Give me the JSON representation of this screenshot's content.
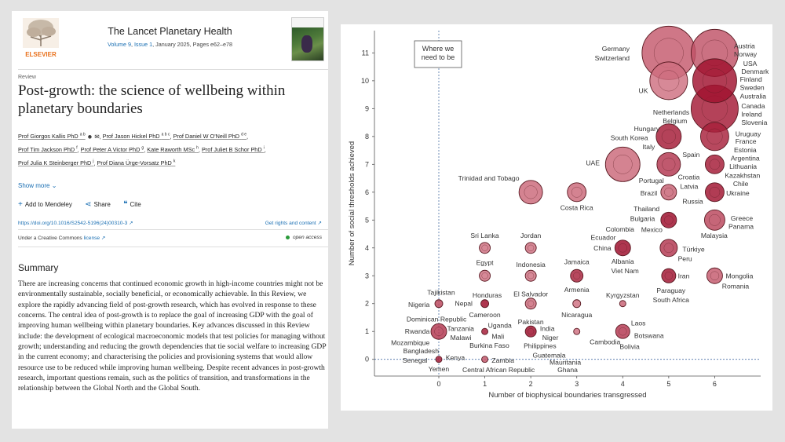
{
  "journal": {
    "publisher_logo_text": "ELSEVIER",
    "title": "The Lancet Planetary Health",
    "volume_label": "Volume 9",
    "issue_label": "Issue 1",
    "meta_rest": ", January 2025, Pages e62–e78"
  },
  "article": {
    "type": "Review",
    "title": "Post-growth: the science of wellbeing within planetary boundaries",
    "authors": [
      {
        "name": "Prof Giorgos Kallis PhD",
        "sup": "a b"
      },
      {
        "name": "Prof Jason Hickel PhD",
        "sup": "a b c"
      },
      {
        "name": "Prof Daniel W O'Neill PhD",
        "sup": "d e"
      },
      {
        "name": "Prof Tim Jackson PhD",
        "sup": "f"
      },
      {
        "name": "Prof Peter A Victor PhD",
        "sup": "g"
      },
      {
        "name": "Kate Raworth MSc",
        "sup": "h"
      },
      {
        "name": "Prof Juliet B Schor PhD",
        "sup": "i"
      },
      {
        "name": "Prof Julia K Steinberger PhD",
        "sup": "j"
      },
      {
        "name": "Prof Diana Ürge-Vorsatz PhD",
        "sup": "k"
      }
    ],
    "show_more": "Show more",
    "actions": {
      "mendeley": "Add to Mendeley",
      "share": "Share",
      "cite": "Cite"
    },
    "doi": "https://doi.org/10.1016/S2542-5196(24)00310-3 ↗",
    "rights": "Get rights and content ↗",
    "license_prefix": "Under a Creative Commons ",
    "license_link": "license ↗",
    "open_access": "open access",
    "summary_heading": "Summary",
    "summary": "There are increasing concerns that continued economic growth in high-income countries might not be environmentally sustainable, socially beneficial, or economically achievable. In this Review, we explore the rapidly advancing field of post-growth research, which has evolved in response to these concerns. The central idea of post-growth is to replace the goal of increasing GDP with the goal of improving human wellbeing within planetary boundaries. Key advances discussed in this Review include: the development of ecological macroeconomic models that test policies for managing without growth; understanding and reducing the growth dependencies that tie social welfare to increasing GDP in the current economy; and characterising the policies and provisioning systems that would allow resource use to be reduced while improving human wellbeing. Despite recent advances in post-growth research, important questions remain, such as the politics of transition, and transformations in the relationship between the Global North and the Global South."
  },
  "chart_data": {
    "type": "scatter",
    "xlabel": "Number of biophysical boundaries transgressed",
    "ylabel": "Number of social thresholds achieved",
    "xlim": [
      -1.4,
      7.0
    ],
    "ylim": [
      -0.6,
      11.8
    ],
    "xticks": [
      "0",
      "1",
      "2",
      "3",
      "4",
      "5",
      "6"
    ],
    "yticks": [
      "0",
      "1",
      "2",
      "3",
      "4",
      "5",
      "6",
      "7",
      "8",
      "9",
      "10",
      "11"
    ],
    "annotation": "Where we need to be",
    "colors": {
      "dark": "#9c0a28",
      "mid": "#c43450",
      "light": "#e49aa5",
      "edge": "#5a1a22"
    },
    "bubbles": [
      {
        "x": 5,
        "y": 11,
        "r": 34,
        "level": 0.45
      },
      {
        "x": 6,
        "y": 11,
        "r": 30,
        "level": 0.5
      },
      {
        "x": 5,
        "y": 10,
        "r": 24,
        "level": 0.3
      },
      {
        "x": 6,
        "y": 10,
        "r": 28,
        "level": 0.95
      },
      {
        "x": 6,
        "y": 9,
        "r": 30,
        "level": 0.9
      },
      {
        "x": 5,
        "y": 8,
        "r": 16,
        "level": 0.9
      },
      {
        "x": 6,
        "y": 8,
        "r": 18,
        "level": 0.85
      },
      {
        "x": 4,
        "y": 7,
        "r": 22,
        "level": 0.35
      },
      {
        "x": 5,
        "y": 7,
        "r": 15,
        "level": 0.7
      },
      {
        "x": 6,
        "y": 7,
        "r": 12,
        "level": 0.9
      },
      {
        "x": 2,
        "y": 6,
        "r": 15,
        "level": 0.35
      },
      {
        "x": 3,
        "y": 6,
        "r": 12,
        "level": 0.35
      },
      {
        "x": 5,
        "y": 6,
        "r": 10,
        "level": 0.4
      },
      {
        "x": 6,
        "y": 6,
        "r": 12,
        "level": 0.95
      },
      {
        "x": 5,
        "y": 5,
        "r": 10,
        "level": 1.0
      },
      {
        "x": 6,
        "y": 5,
        "r": 13,
        "level": 0.6
      },
      {
        "x": 4,
        "y": 4,
        "r": 10,
        "level": 1.0
      },
      {
        "x": 5,
        "y": 4,
        "r": 11,
        "level": 0.7
      },
      {
        "x": 1,
        "y": 4,
        "r": 7,
        "level": 0.3
      },
      {
        "x": 2,
        "y": 4,
        "r": 7,
        "level": 0.3
      },
      {
        "x": 1,
        "y": 3,
        "r": 7,
        "level": 0.3
      },
      {
        "x": 2,
        "y": 3,
        "r": 7,
        "level": 0.3
      },
      {
        "x": 3,
        "y": 3,
        "r": 8,
        "level": 0.85
      },
      {
        "x": 5,
        "y": 3,
        "r": 9,
        "level": 0.95
      },
      {
        "x": 6,
        "y": 3,
        "r": 10,
        "level": 0.45
      },
      {
        "x": 0,
        "y": 2,
        "r": 5,
        "level": 0.6
      },
      {
        "x": 1,
        "y": 2,
        "r": 5,
        "level": 1.0
      },
      {
        "x": 2,
        "y": 2,
        "r": 7,
        "level": 0.35
      },
      {
        "x": 3,
        "y": 2,
        "r": 5,
        "level": 0.3
      },
      {
        "x": 4,
        "y": 2,
        "r": 4,
        "level": 0.4
      },
      {
        "x": 0,
        "y": 1,
        "r": 10,
        "level": 0.7
      },
      {
        "x": 1,
        "y": 1,
        "r": 4,
        "level": 0.9
      },
      {
        "x": 2,
        "y": 1,
        "r": 7,
        "level": 1.0
      },
      {
        "x": 3,
        "y": 1,
        "r": 4,
        "level": 0.3
      },
      {
        "x": 4,
        "y": 1,
        "r": 9,
        "level": 0.7
      },
      {
        "x": 0,
        "y": 0,
        "r": 4,
        "level": 0.9
      },
      {
        "x": 1,
        "y": 0,
        "r": 4,
        "level": 0.5
      }
    ],
    "labels": [
      {
        "text": "Austria",
        "x": 6.42,
        "y": 11.25,
        "anchor": "start"
      },
      {
        "text": "Norway",
        "x": 6.42,
        "y": 10.95,
        "anchor": "start"
      },
      {
        "text": "USA",
        "x": 6.62,
        "y": 10.62,
        "anchor": "start"
      },
      {
        "text": "Denmark",
        "x": 6.58,
        "y": 10.33,
        "anchor": "start"
      },
      {
        "text": "Finland",
        "x": 6.55,
        "y": 10.05,
        "anchor": "start"
      },
      {
        "text": "Sweden",
        "x": 6.55,
        "y": 9.75,
        "anchor": "start"
      },
      {
        "text": "Australia",
        "x": 6.55,
        "y": 9.45,
        "anchor": "start"
      },
      {
        "text": "Canada",
        "x": 6.58,
        "y": 9.1,
        "anchor": "start"
      },
      {
        "text": "Ireland",
        "x": 6.58,
        "y": 8.8,
        "anchor": "start"
      },
      {
        "text": "Slovenia",
        "x": 6.58,
        "y": 8.5,
        "anchor": "start"
      },
      {
        "text": "Uruguay",
        "x": 6.45,
        "y": 8.1,
        "anchor": "start"
      },
      {
        "text": "France",
        "x": 6.45,
        "y": 7.82,
        "anchor": "start"
      },
      {
        "text": "Estonia",
        "x": 6.42,
        "y": 7.52,
        "anchor": "start"
      },
      {
        "text": "Argentina",
        "x": 6.35,
        "y": 7.22,
        "anchor": "start"
      },
      {
        "text": "Lithuania",
        "x": 6.32,
        "y": 6.92,
        "anchor": "start"
      },
      {
        "text": "Kazakhstan",
        "x": 6.22,
        "y": 6.6,
        "anchor": "start"
      },
      {
        "text": "Chile",
        "x": 6.4,
        "y": 6.3,
        "anchor": "start"
      },
      {
        "text": "Ukraine",
        "x": 6.25,
        "y": 5.97,
        "anchor": "start"
      },
      {
        "text": "Greece",
        "x": 6.35,
        "y": 5.07,
        "anchor": "start"
      },
      {
        "text": "Panama",
        "x": 6.3,
        "y": 4.77,
        "anchor": "start"
      },
      {
        "text": "Malaysia",
        "x": 5.7,
        "y": 4.45,
        "anchor": "start"
      },
      {
        "text": "Mongolia",
        "x": 6.24,
        "y": 3.0,
        "anchor": "start"
      },
      {
        "text": "Romania",
        "x": 6.16,
        "y": 2.62,
        "anchor": "start"
      },
      {
        "text": "Germany",
        "x": 4.15,
        "y": 11.15,
        "anchor": "end"
      },
      {
        "text": "Switzerland",
        "x": 4.15,
        "y": 10.82,
        "anchor": "end"
      },
      {
        "text": "UK",
        "x": 4.55,
        "y": 9.65,
        "anchor": "end"
      },
      {
        "text": "Netherlands",
        "x": 5.45,
        "y": 8.87,
        "anchor": "end"
      },
      {
        "text": "Belgium",
        "x": 5.4,
        "y": 8.56,
        "anchor": "end"
      },
      {
        "text": "Hungary",
        "x": 4.8,
        "y": 8.28,
        "anchor": "end"
      },
      {
        "text": "South Korea",
        "x": 4.55,
        "y": 7.95,
        "anchor": "end"
      },
      {
        "text": "Italy",
        "x": 4.7,
        "y": 7.63,
        "anchor": "end"
      },
      {
        "text": "Spain",
        "x": 5.3,
        "y": 7.35,
        "anchor": "start"
      },
      {
        "text": "UAE",
        "x": 3.5,
        "y": 7.05,
        "anchor": "end"
      },
      {
        "text": "Croatia",
        "x": 5.2,
        "y": 6.55,
        "anchor": "start"
      },
      {
        "text": "Portugal",
        "x": 4.35,
        "y": 6.42,
        "anchor": "start"
      },
      {
        "text": "Latvia",
        "x": 5.25,
        "y": 6.2,
        "anchor": "start"
      },
      {
        "text": "Brazil",
        "x": 4.75,
        "y": 5.97,
        "anchor": "end"
      },
      {
        "text": "Russia",
        "x": 5.3,
        "y": 5.67,
        "anchor": "start"
      },
      {
        "text": "Thailand",
        "x": 4.8,
        "y": 5.4,
        "anchor": "end"
      },
      {
        "text": "Bulgaria",
        "x": 4.7,
        "y": 5.05,
        "anchor": "end"
      },
      {
        "text": "Colombia",
        "x": 4.25,
        "y": 4.67,
        "anchor": "end"
      },
      {
        "text": "Mexico",
        "x": 4.4,
        "y": 4.65,
        "anchor": "start"
      },
      {
        "text": "Ecuador",
        "x": 3.85,
        "y": 4.37,
        "anchor": "end"
      },
      {
        "text": "China",
        "x": 3.75,
        "y": 4.0,
        "anchor": "end"
      },
      {
        "text": "Türkiye",
        "x": 5.3,
        "y": 3.95,
        "anchor": "start"
      },
      {
        "text": "Albania",
        "x": 4.0,
        "y": 3.52,
        "anchor": "middle"
      },
      {
        "text": "Peru",
        "x": 5.2,
        "y": 3.62,
        "anchor": "start"
      },
      {
        "text": "Viet Nam",
        "x": 4.05,
        "y": 3.17,
        "anchor": "middle"
      },
      {
        "text": "Iran",
        "x": 5.2,
        "y": 3.0,
        "anchor": "start"
      },
      {
        "text": "Kyrgyzstan",
        "x": 4.0,
        "y": 2.3,
        "anchor": "middle"
      },
      {
        "text": "Paraguay",
        "x": 5.05,
        "y": 2.47,
        "anchor": "middle"
      },
      {
        "text": "South Africa",
        "x": 5.05,
        "y": 2.13,
        "anchor": "middle"
      },
      {
        "text": "Laos",
        "x": 4.18,
        "y": 1.3,
        "anchor": "start"
      },
      {
        "text": "Botswana",
        "x": 4.25,
        "y": 0.85,
        "anchor": "start"
      },
      {
        "text": "Bolivia",
        "x": 4.15,
        "y": 0.45,
        "anchor": "middle"
      },
      {
        "text": "Trinidad and Tobago",
        "x": 1.75,
        "y": 6.5,
        "anchor": "end"
      },
      {
        "text": "Costa Rica",
        "x": 3.0,
        "y": 5.45,
        "anchor": "middle"
      },
      {
        "text": "Sri Lanka",
        "x": 1.0,
        "y": 4.45,
        "anchor": "middle"
      },
      {
        "text": "Jordan",
        "x": 2.0,
        "y": 4.45,
        "anchor": "middle"
      },
      {
        "text": "Egypt",
        "x": 1.0,
        "y": 3.47,
        "anchor": "middle"
      },
      {
        "text": "Indonesia",
        "x": 2.0,
        "y": 3.4,
        "anchor": "middle"
      },
      {
        "text": "Jamaica",
        "x": 3.0,
        "y": 3.5,
        "anchor": "middle"
      },
      {
        "text": "Armenia",
        "x": 3.0,
        "y": 2.5,
        "anchor": "middle"
      },
      {
        "text": "Honduras",
        "x": 1.05,
        "y": 2.3,
        "anchor": "middle"
      },
      {
        "text": "El Salvador",
        "x": 2.0,
        "y": 2.35,
        "anchor": "middle"
      },
      {
        "text": "Tajikistan",
        "x": 0.05,
        "y": 2.4,
        "anchor": "middle"
      },
      {
        "text": "Nigeria",
        "x": -0.2,
        "y": 1.97,
        "anchor": "end"
      },
      {
        "text": "Nepal",
        "x": 0.35,
        "y": 2.0,
        "anchor": "start"
      },
      {
        "text": "Cameroon",
        "x": 1.0,
        "y": 1.6,
        "anchor": "middle"
      },
      {
        "text": "Nicaragua",
        "x": 3.0,
        "y": 1.6,
        "anchor": "middle"
      },
      {
        "text": "Pakistan",
        "x": 2.0,
        "y": 1.35,
        "anchor": "middle"
      },
      {
        "text": "Dominican Republic",
        "x": -0.05,
        "y": 1.45,
        "anchor": "middle"
      },
      {
        "text": "Uganda",
        "x": 1.07,
        "y": 1.22,
        "anchor": "start"
      },
      {
        "text": "Tanzania",
        "x": 0.18,
        "y": 1.1,
        "anchor": "start"
      },
      {
        "text": "India",
        "x": 2.2,
        "y": 1.1,
        "anchor": "start"
      },
      {
        "text": "Rwanda",
        "x": -0.2,
        "y": 1.0,
        "anchor": "end"
      },
      {
        "text": "Malawi",
        "x": 0.25,
        "y": 0.78,
        "anchor": "start"
      },
      {
        "text": "Mali",
        "x": 1.15,
        "y": 0.82,
        "anchor": "start"
      },
      {
        "text": "Niger",
        "x": 2.25,
        "y": 0.78,
        "anchor": "start"
      },
      {
        "text": "Cambodia",
        "x": 3.28,
        "y": 0.63,
        "anchor": "start"
      },
      {
        "text": "Mozambique",
        "x": -0.2,
        "y": 0.6,
        "anchor": "end"
      },
      {
        "text": "Burkina Faso",
        "x": 1.1,
        "y": 0.5,
        "anchor": "middle"
      },
      {
        "text": "Philippines",
        "x": 2.2,
        "y": 0.48,
        "anchor": "middle"
      },
      {
        "text": "Bangladesh",
        "x": 0.0,
        "y": 0.3,
        "anchor": "end"
      },
      {
        "text": "Guatemala",
        "x": 2.4,
        "y": 0.15,
        "anchor": "middle"
      },
      {
        "text": "Kenya",
        "x": 0.15,
        "y": 0.06,
        "anchor": "start"
      },
      {
        "text": "Zambia",
        "x": 1.15,
        "y": -0.03,
        "anchor": "start"
      },
      {
        "text": "Senegal",
        "x": -0.25,
        "y": -0.03,
        "anchor": "end"
      },
      {
        "text": "Mauritania",
        "x": 2.75,
        "y": -0.1,
        "anchor": "middle"
      },
      {
        "text": "Yemen",
        "x": 0.0,
        "y": -0.35,
        "anchor": "middle"
      },
      {
        "text": "Central African Republic",
        "x": 1.3,
        "y": -0.38,
        "anchor": "middle"
      },
      {
        "text": "Ghana",
        "x": 2.8,
        "y": -0.38,
        "anchor": "middle"
      }
    ]
  }
}
